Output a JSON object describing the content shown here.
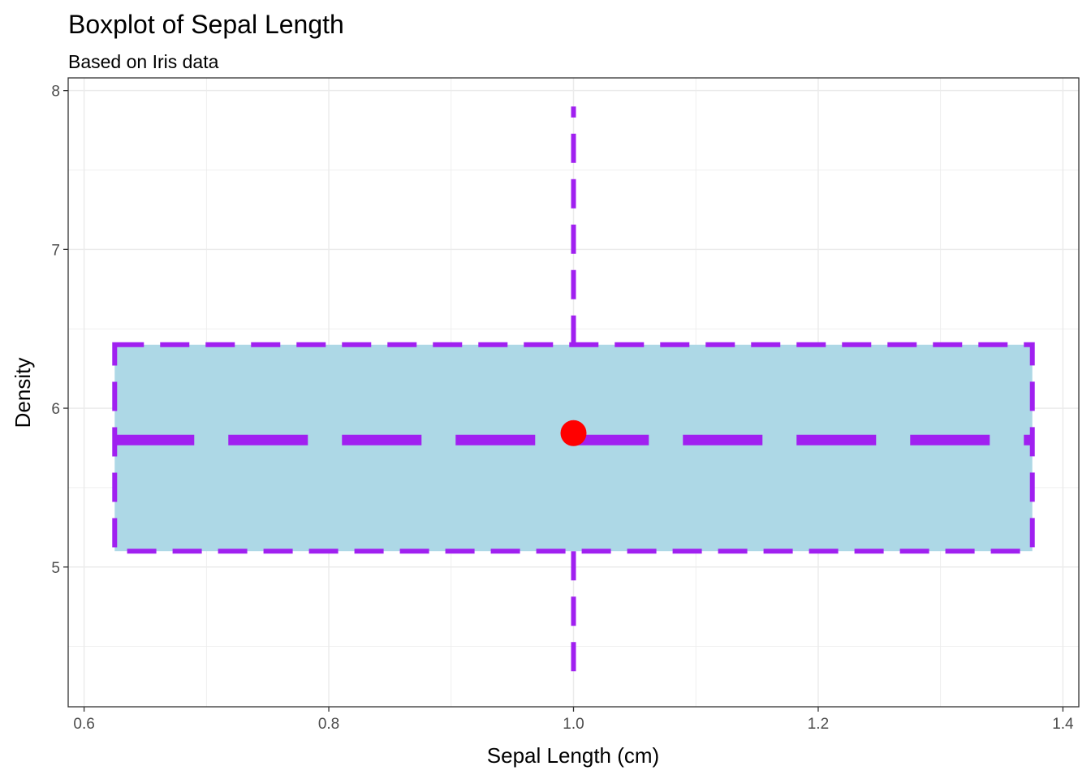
{
  "chart_data": {
    "type": "boxplot",
    "title": "Boxplot of Sepal Length",
    "subtitle": "Based on Iris data",
    "xlabel": "Sepal Length (cm)",
    "ylabel": "Density",
    "xlim": [
      0.587,
      1.413
    ],
    "ylim": [
      4.12,
      8.08
    ],
    "x_ticks": [
      0.6,
      0.8,
      1.0,
      1.2,
      1.4
    ],
    "x_tick_labels": [
      "0.6",
      "0.8",
      "1.0",
      "1.2",
      "1.4"
    ],
    "y_ticks": [
      5,
      6,
      7,
      8
    ],
    "y_tick_labels": [
      "5",
      "6",
      "7",
      "8"
    ],
    "grid": true,
    "box": {
      "x_center": 1.0,
      "x_min": 0.625,
      "x_max": 1.375,
      "whisker_low": 4.3,
      "q1": 5.1,
      "median": 5.8,
      "q3": 6.4,
      "whisker_high": 7.9,
      "mean": 5.843
    },
    "colors": {
      "box_fill": "#add8e6",
      "box_outline": "#a020f0",
      "mean_point": "#ff0000",
      "grid": "#ebebeb",
      "panel_border": "#333333"
    }
  }
}
